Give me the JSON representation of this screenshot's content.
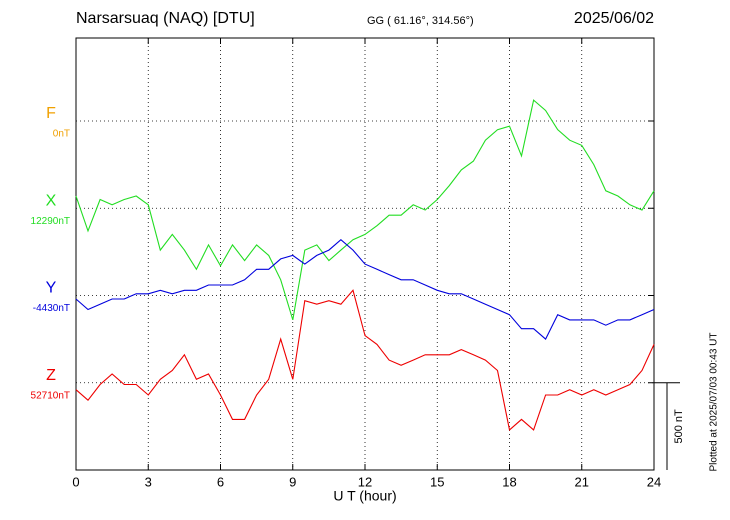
{
  "chart_data": {
    "type": "line",
    "title": "Narsarsuaq (NAQ)  [DTU]",
    "subtitle": "GG ( 61.16°, 314.56°)",
    "date": "2025/06/02",
    "x_label": "U T (hour)",
    "footnote": "Plotted at 2025/07/03 00:43 UT",
    "xlim": [
      0,
      24
    ],
    "xticks": [
      0,
      3,
      6,
      9,
      12,
      15,
      18,
      21,
      24
    ],
    "grid": true,
    "scale_bar": {
      "value": 500,
      "label": "500 nT"
    },
    "x": [
      0,
      0.5,
      1,
      1.5,
      2,
      2.5,
      3,
      3.5,
      4,
      4.5,
      5,
      5.5,
      6,
      6.5,
      7,
      7.5,
      8,
      8.5,
      9,
      9.5,
      10,
      10.5,
      11,
      11.5,
      12,
      12.5,
      13,
      13.5,
      14,
      14.5,
      15,
      15.5,
      16,
      16.5,
      17,
      17.5,
      18,
      18.5,
      19,
      19.5,
      20,
      20.5,
      21,
      21.5,
      22,
      22.5,
      23,
      23.5,
      24
    ],
    "series": [
      {
        "name": "F",
        "color": "#f0a000",
        "baseline": {
          "value": 0,
          "label": "0nT"
        }
      },
      {
        "name": "X",
        "color": "#22dd22",
        "baseline": {
          "value": 12290,
          "label": "12290nT"
        },
        "values": [
          12360,
          12160,
          12340,
          12310,
          12340,
          12360,
          12310,
          12050,
          12140,
          12050,
          11940,
          12080,
          11960,
          12080,
          11990,
          12080,
          12020,
          11880,
          11650,
          12050,
          12080,
          11990,
          12050,
          12110,
          12140,
          12190,
          12250,
          12250,
          12310,
          12280,
          12340,
          12420,
          12510,
          12560,
          12680,
          12740,
          12760,
          12590,
          12910,
          12850,
          12740,
          12680,
          12650,
          12540,
          12390,
          12360,
          12310,
          12280,
          12390
        ]
      },
      {
        "name": "Y",
        "color": "#0000dd",
        "baseline": {
          "value": -4430,
          "label": "-4430nT"
        },
        "values": [
          -4450,
          -4510,
          -4480,
          -4450,
          -4450,
          -4420,
          -4420,
          -4400,
          -4420,
          -4400,
          -4400,
          -4370,
          -4370,
          -4370,
          -4340,
          -4280,
          -4280,
          -4220,
          -4200,
          -4250,
          -4200,
          -4170,
          -4110,
          -4170,
          -4250,
          -4280,
          -4310,
          -4340,
          -4340,
          -4370,
          -4400,
          -4420,
          -4420,
          -4450,
          -4480,
          -4510,
          -4540,
          -4620,
          -4620,
          -4680,
          -4540,
          -4570,
          -4570,
          -4570,
          -4600,
          -4570,
          -4570,
          -4540,
          -4510
        ]
      },
      {
        "name": "Z",
        "color": "#ee0000",
        "baseline": {
          "value": 52710,
          "label": "52710nT"
        },
        "values": [
          52670,
          52610,
          52700,
          52760,
          52700,
          52700,
          52640,
          52730,
          52780,
          52870,
          52730,
          52760,
          52640,
          52500,
          52500,
          52640,
          52730,
          52960,
          52730,
          53180,
          53160,
          53180,
          53160,
          53240,
          52980,
          52930,
          52840,
          52810,
          52840,
          52870,
          52870,
          52870,
          52900,
          52870,
          52840,
          52780,
          52440,
          52500,
          52440,
          52640,
          52640,
          52670,
          52640,
          52670,
          52640,
          52670,
          52700,
          52780,
          52930
        ]
      }
    ]
  }
}
